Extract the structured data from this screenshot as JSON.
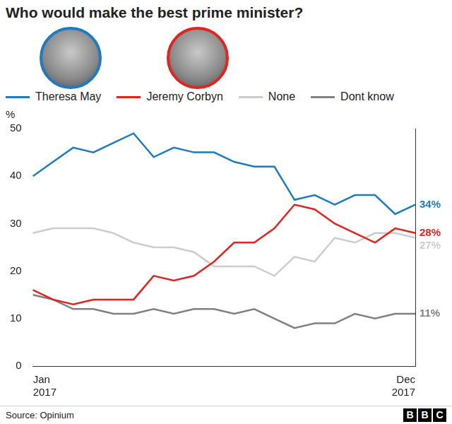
{
  "chart_data": {
    "type": "line",
    "title": "Who would make the best prime minister?",
    "y_label": "%",
    "source": "Source: Opinium",
    "logo": "BBC",
    "categories": [
      "Jan 2017",
      null,
      null,
      null,
      null,
      null,
      null,
      null,
      null,
      null,
      null,
      null,
      null,
      null,
      null,
      null,
      null,
      null,
      null,
      "Dec 2017"
    ],
    "series": [
      {
        "name": "Theresa May",
        "color": "#1d7bc2",
        "values": [
          40,
          43,
          46,
          45,
          47,
          49,
          44,
          46,
          45,
          45,
          43,
          42,
          42,
          35,
          36,
          34,
          36,
          36,
          32,
          34
        ],
        "value_labels": [
          null,
          null,
          null,
          null,
          null,
          null,
          null,
          null,
          null,
          null,
          null,
          null,
          null,
          null,
          null,
          null,
          null,
          null,
          null,
          "34%"
        ]
      },
      {
        "name": "Jeremy Corbyn",
        "color": "#e3231e",
        "values": [
          16,
          14,
          13,
          14,
          14,
          14,
          19,
          18,
          19,
          22,
          26,
          26,
          29,
          34,
          33,
          30,
          28,
          26,
          29,
          28
        ],
        "value_labels": [
          null,
          null,
          null,
          null,
          null,
          null,
          null,
          null,
          null,
          null,
          null,
          null,
          null,
          null,
          null,
          null,
          null,
          null,
          null,
          "28%"
        ]
      },
      {
        "name": "None",
        "color": "#cccccc",
        "values": [
          28,
          29,
          29,
          29,
          28,
          26,
          25,
          25,
          24,
          21,
          21,
          21,
          19,
          23,
          22,
          27,
          26,
          28,
          28,
          27
        ],
        "value_labels": [
          null,
          null,
          null,
          null,
          null,
          null,
          null,
          null,
          null,
          null,
          null,
          null,
          null,
          null,
          null,
          null,
          null,
          null,
          null,
          "27%"
        ]
      },
      {
        "name": "Dont know",
        "color": "#808080",
        "values": [
          15,
          14,
          12,
          12,
          11,
          11,
          12,
          11,
          12,
          12,
          11,
          12,
          10,
          8,
          9,
          9,
          11,
          10,
          11,
          11
        ],
        "value_labels": [
          null,
          null,
          null,
          null,
          null,
          null,
          null,
          null,
          null,
          null,
          null,
          null,
          null,
          null,
          null,
          null,
          null,
          null,
          null,
          "11%"
        ]
      }
    ],
    "ylim": [
      0,
      50
    ],
    "yticks": [
      0,
      10,
      20,
      30,
      40,
      50
    ],
    "grid": false,
    "legend": "top"
  }
}
